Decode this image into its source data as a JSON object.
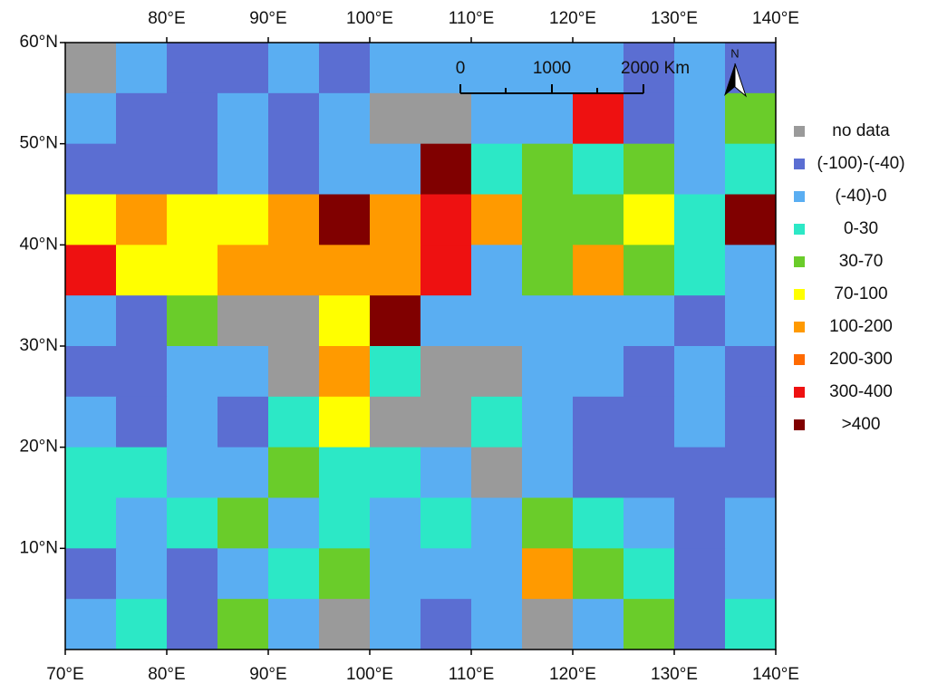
{
  "chart_data": {
    "type": "grid-map",
    "xlim": [
      70,
      140
    ],
    "ylim": [
      0,
      60
    ],
    "xticks": [
      {
        "value": 70,
        "label": "70°E"
      },
      {
        "value": 80,
        "label": "80°E"
      },
      {
        "value": 90,
        "label": "90°E"
      },
      {
        "value": 100,
        "label": "100°E"
      },
      {
        "value": 110,
        "label": "110°E"
      },
      {
        "value": 120,
        "label": "120°E"
      },
      {
        "value": 130,
        "label": "130°E"
      },
      {
        "value": 140,
        "label": "140°E"
      }
    ],
    "yticks": [
      {
        "value": 10,
        "label": "10°N"
      },
      {
        "value": 20,
        "label": "20°N"
      },
      {
        "value": 30,
        "label": "30°N"
      },
      {
        "value": 40,
        "label": "40°N"
      },
      {
        "value": 50,
        "label": "50°N"
      },
      {
        "value": 60,
        "label": "60°N"
      }
    ],
    "legend": [
      {
        "label": "no data",
        "color": "#9a9a9a"
      },
      {
        "label": "(-100)-(-40)",
        "color": "#5b6ed2"
      },
      {
        "label": "(-40)-0",
        "color": "#5aaef2"
      },
      {
        "label": "0-30",
        "color": "#2ce8c6"
      },
      {
        "label": "30-70",
        "color": "#6acc2a"
      },
      {
        "label": "70-100",
        "color": "#ffff00"
      },
      {
        "label": "100-200",
        "color": "#ff9a00"
      },
      {
        "label": "200-300",
        "color": "#ff6a00"
      },
      {
        "label": "300-400",
        "color": "#ee1111"
      },
      {
        "label": ">400",
        "color": "#800000"
      }
    ],
    "grid": [
      [
        0,
        2,
        1,
        1,
        2,
        1,
        2,
        2,
        2,
        2,
        2,
        1,
        2,
        1
      ],
      [
        2,
        1,
        1,
        2,
        1,
        2,
        0,
        0,
        2,
        2,
        8,
        1,
        2,
        4
      ],
      [
        1,
        1,
        1,
        2,
        1,
        2,
        2,
        9,
        3,
        4,
        3,
        4,
        2,
        3
      ],
      [
        5,
        6,
        5,
        5,
        6,
        9,
        6,
        8,
        6,
        4,
        4,
        5,
        3,
        9
      ],
      [
        8,
        5,
        5,
        6,
        6,
        6,
        6,
        8,
        2,
        4,
        6,
        4,
        3,
        2
      ],
      [
        2,
        1,
        4,
        0,
        0,
        5,
        9,
        2,
        2,
        2,
        2,
        2,
        1,
        2
      ],
      [
        1,
        1,
        2,
        2,
        0,
        6,
        3,
        0,
        0,
        2,
        2,
        1,
        2,
        1
      ],
      [
        2,
        1,
        2,
        1,
        3,
        5,
        0,
        0,
        3,
        2,
        1,
        1,
        2,
        1
      ],
      [
        3,
        3,
        2,
        2,
        4,
        3,
        3,
        2,
        0,
        2,
        1,
        1,
        1,
        1
      ],
      [
        3,
        2,
        3,
        4,
        2,
        3,
        2,
        3,
        2,
        4,
        3,
        2,
        1,
        2
      ],
      [
        1,
        2,
        1,
        2,
        3,
        4,
        2,
        2,
        2,
        6,
        4,
        3,
        1,
        2
      ],
      [
        2,
        3,
        1,
        4,
        2,
        0,
        2,
        1,
        2,
        0,
        2,
        4,
        1,
        3
      ]
    ],
    "scale_bar": [
      "0",
      "1000",
      "2000 Km"
    ],
    "north": "N"
  }
}
